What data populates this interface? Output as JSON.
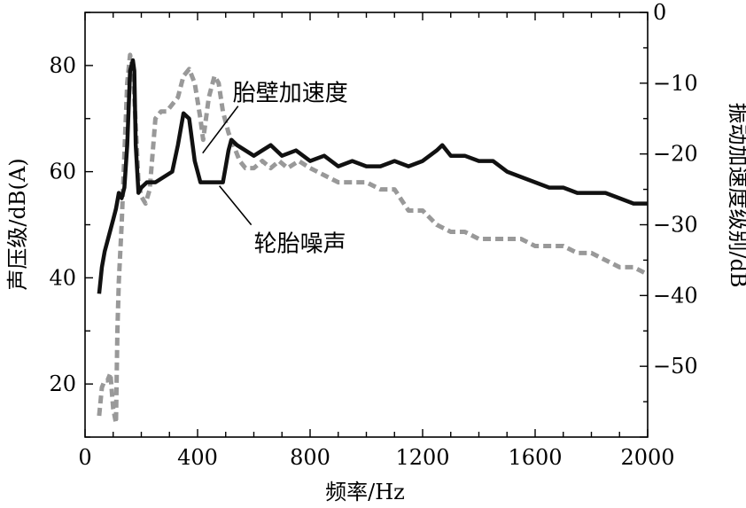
{
  "chart_data": {
    "type": "line",
    "xlabel": "频率/Hz",
    "ylabel_left": "声压级/dB(A)",
    "ylabel_right": "振动加速度级别/dB",
    "x_ticks": [
      0,
      400,
      800,
      1200,
      1600,
      2000
    ],
    "x_tick_labels": [
      "0",
      "400",
      "800",
      "1200",
      "1600",
      "2000"
    ],
    "xlim": [
      0,
      2000
    ],
    "y_left_ticks": [
      20,
      40,
      60,
      80
    ],
    "y_left_tick_labels": [
      "20",
      "40",
      "60",
      "80"
    ],
    "y_left_lim": [
      10,
      90
    ],
    "y_right_ticks": [
      0,
      -10,
      -20,
      -30,
      -40,
      -50
    ],
    "y_right_tick_labels": [
      "0",
      "−10",
      "−20",
      "−30",
      "−40",
      "−50"
    ],
    "y_right_lim": [
      -60,
      0
    ],
    "grid": false,
    "series": [
      {
        "name": "胎壁加速度",
        "axis": "right",
        "style": "dashed",
        "color": "#999999",
        "x": [
          50,
          60,
          70,
          80,
          90,
          100,
          110,
          115,
          120,
          130,
          140,
          150,
          160,
          170,
          180,
          190,
          200,
          215,
          230,
          250,
          270,
          290,
          310,
          330,
          350,
          370,
          390,
          410,
          420,
          440,
          460,
          475,
          490,
          510,
          530,
          550,
          570,
          600,
          630,
          660,
          690,
          720,
          760,
          800,
          850,
          900,
          950,
          1000,
          1050,
          1100,
          1150,
          1200,
          1250,
          1300,
          1350,
          1400,
          1450,
          1500,
          1550,
          1600,
          1650,
          1700,
          1750,
          1800,
          1850,
          1900,
          1950,
          2000
        ],
        "values": [
          -57,
          -53,
          -52,
          -52,
          -51,
          -56,
          -58,
          -45,
          -38,
          -30,
          -20,
          -10,
          -6,
          -8,
          -16,
          -24,
          -26,
          -27,
          -25,
          -15,
          -14,
          -14,
          -13,
          -12,
          -9,
          -8,
          -10,
          -15,
          -18,
          -12,
          -9,
          -10,
          -14,
          -17,
          -19,
          -21,
          -22,
          -22,
          -21,
          -22,
          -21,
          -22,
          -21,
          -22,
          -23,
          -24,
          -24,
          -24,
          -25,
          -25,
          -28,
          -28,
          -30,
          -31,
          -31,
          -32,
          -32,
          -32,
          -32,
          -33,
          -33,
          -33,
          -34,
          -34,
          -35,
          -36,
          -36,
          -37
        ]
      },
      {
        "name": "轮胎噪声",
        "axis": "left",
        "style": "solid",
        "color": "#111111",
        "x": [
          50,
          60,
          70,
          80,
          90,
          100,
          110,
          120,
          130,
          140,
          150,
          160,
          170,
          175,
          180,
          190,
          200,
          220,
          250,
          280,
          310,
          330,
          350,
          370,
          390,
          410,
          440,
          470,
          490,
          500,
          510,
          520,
          540,
          570,
          600,
          630,
          660,
          700,
          750,
          800,
          850,
          900,
          950,
          1000,
          1050,
          1100,
          1150,
          1200,
          1250,
          1270,
          1300,
          1350,
          1400,
          1450,
          1500,
          1550,
          1600,
          1650,
          1700,
          1750,
          1800,
          1850,
          1900,
          1950,
          2000
        ],
        "values": [
          37,
          42,
          45,
          47,
          49,
          51,
          53,
          56,
          55,
          57,
          65,
          79,
          81,
          79,
          65,
          56,
          57,
          58,
          58,
          59,
          60,
          65,
          71,
          70,
          62,
          58,
          58,
          58,
          58,
          61,
          64,
          66,
          65,
          64,
          63,
          64,
          65,
          63,
          64,
          62,
          63,
          61,
          62,
          61,
          61,
          62,
          61,
          62,
          64,
          65,
          63,
          63,
          62,
          62,
          60,
          59,
          58,
          57,
          57,
          56,
          56,
          56,
          55,
          54,
          54
        ]
      }
    ],
    "annotations": [
      {
        "text": "胎壁加速度",
        "series": "胎壁加速度",
        "x": 500,
        "y_right": -19
      },
      {
        "text": "轮胎噪声",
        "series": "轮胎噪声",
        "x": 550,
        "y_left": 57
      }
    ]
  }
}
